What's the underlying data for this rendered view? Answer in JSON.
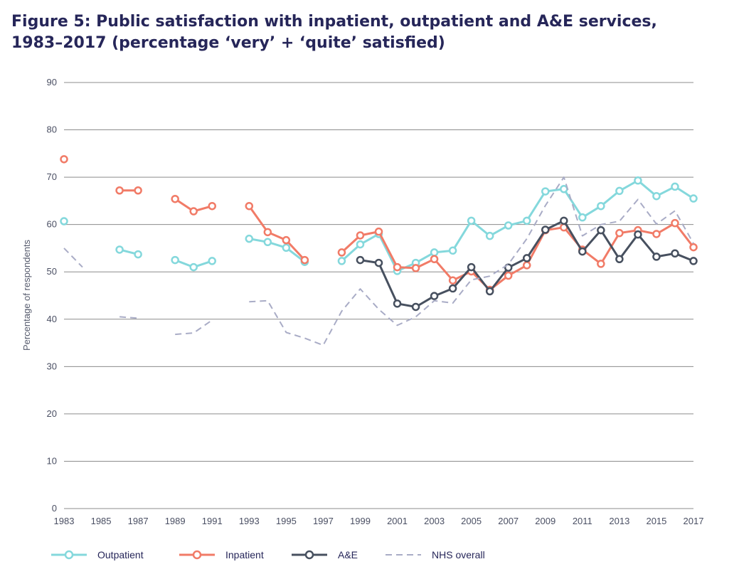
{
  "title": {
    "line1": "Figure 5: Public satisfaction with inpatient, outpatient and A&E services,",
    "line2": "1983–2017 (percentage ‘very’ + ‘quite’ satisfied)"
  },
  "colors": {
    "outpatient": "#84d8dc",
    "inpatient": "#f17b67",
    "ae": "#47505f",
    "nhs": "#a9acc6",
    "grid": "#8c8c8c"
  },
  "chart_data": {
    "type": "line",
    "title": "Figure 5: Public satisfaction with inpatient, outpatient and A&E services, 1983–2017 (percentage ‘very’ + ‘quite’ satisfied)",
    "xlabel": "",
    "ylabel": "Percentage of respondents",
    "xlim": [
      1983,
      2017
    ],
    "ylim": [
      0,
      90
    ],
    "grid": true,
    "legend_position": "bottom",
    "x_ticks": [
      1983,
      1985,
      1987,
      1989,
      1991,
      1993,
      1995,
      1997,
      1999,
      2001,
      2003,
      2005,
      2007,
      2009,
      2011,
      2013,
      2015,
      2017
    ],
    "y_ticks": [
      0,
      10,
      20,
      30,
      40,
      50,
      60,
      70,
      80,
      90
    ],
    "x": [
      1983,
      1984,
      1985,
      1986,
      1987,
      1988,
      1989,
      1990,
      1991,
      1992,
      1993,
      1994,
      1995,
      1996,
      1997,
      1998,
      1999,
      2000,
      2001,
      2002,
      2003,
      2004,
      2005,
      2006,
      2007,
      2008,
      2009,
      2010,
      2011,
      2012,
      2013,
      2014,
      2015,
      2016,
      2017
    ],
    "series": [
      {
        "name": "Outpatient",
        "key": "outpatient",
        "style": "line-marker",
        "values": [
          60.7,
          null,
          null,
          54.7,
          53.7,
          null,
          52.5,
          51.0,
          52.3,
          null,
          57.0,
          56.3,
          55.1,
          52.1,
          null,
          52.3,
          55.8,
          58.0,
          50.2,
          51.9,
          54.1,
          54.5,
          60.8,
          57.6,
          59.8,
          60.8,
          67.0,
          67.5,
          61.5,
          63.9,
          67.1,
          69.3,
          66.0,
          68.0,
          65.5
        ]
      },
      {
        "name": "Inpatient",
        "key": "inpatient",
        "style": "line-marker",
        "values": [
          73.8,
          null,
          null,
          67.2,
          67.2,
          null,
          65.4,
          62.8,
          63.9,
          null,
          63.9,
          58.4,
          56.7,
          52.5,
          null,
          54.1,
          57.7,
          58.5,
          51.0,
          50.8,
          52.7,
          48.2,
          50.1,
          46.2,
          49.2,
          51.4,
          58.8,
          59.4,
          54.7,
          51.7,
          58.2,
          58.8,
          58.0,
          60.3,
          55.2
        ]
      },
      {
        "name": "A&E",
        "key": "ae",
        "style": "line-marker",
        "values": [
          null,
          null,
          null,
          null,
          null,
          null,
          null,
          null,
          null,
          null,
          null,
          null,
          null,
          null,
          null,
          null,
          52.5,
          51.9,
          43.3,
          42.6,
          44.9,
          46.5,
          51.0,
          45.9,
          50.9,
          52.9,
          58.9,
          60.8,
          54.3,
          58.8,
          52.7,
          57.9,
          53.2,
          53.9,
          52.3
        ]
      },
      {
        "name": "NHS overall",
        "key": "nhs",
        "style": "dashed",
        "values": [
          55.0,
          51.0,
          null,
          40.5,
          40.2,
          null,
          36.8,
          37.1,
          39.8,
          null,
          43.7,
          43.9,
          37.2,
          36.0,
          34.5,
          41.7,
          46.4,
          42.1,
          38.7,
          40.5,
          43.9,
          43.4,
          48.3,
          49.1,
          51.6,
          57.0,
          64.0,
          70.0,
          57.6,
          60.0,
          60.7,
          65.3,
          60.1,
          62.9,
          56.0
        ]
      }
    ]
  }
}
